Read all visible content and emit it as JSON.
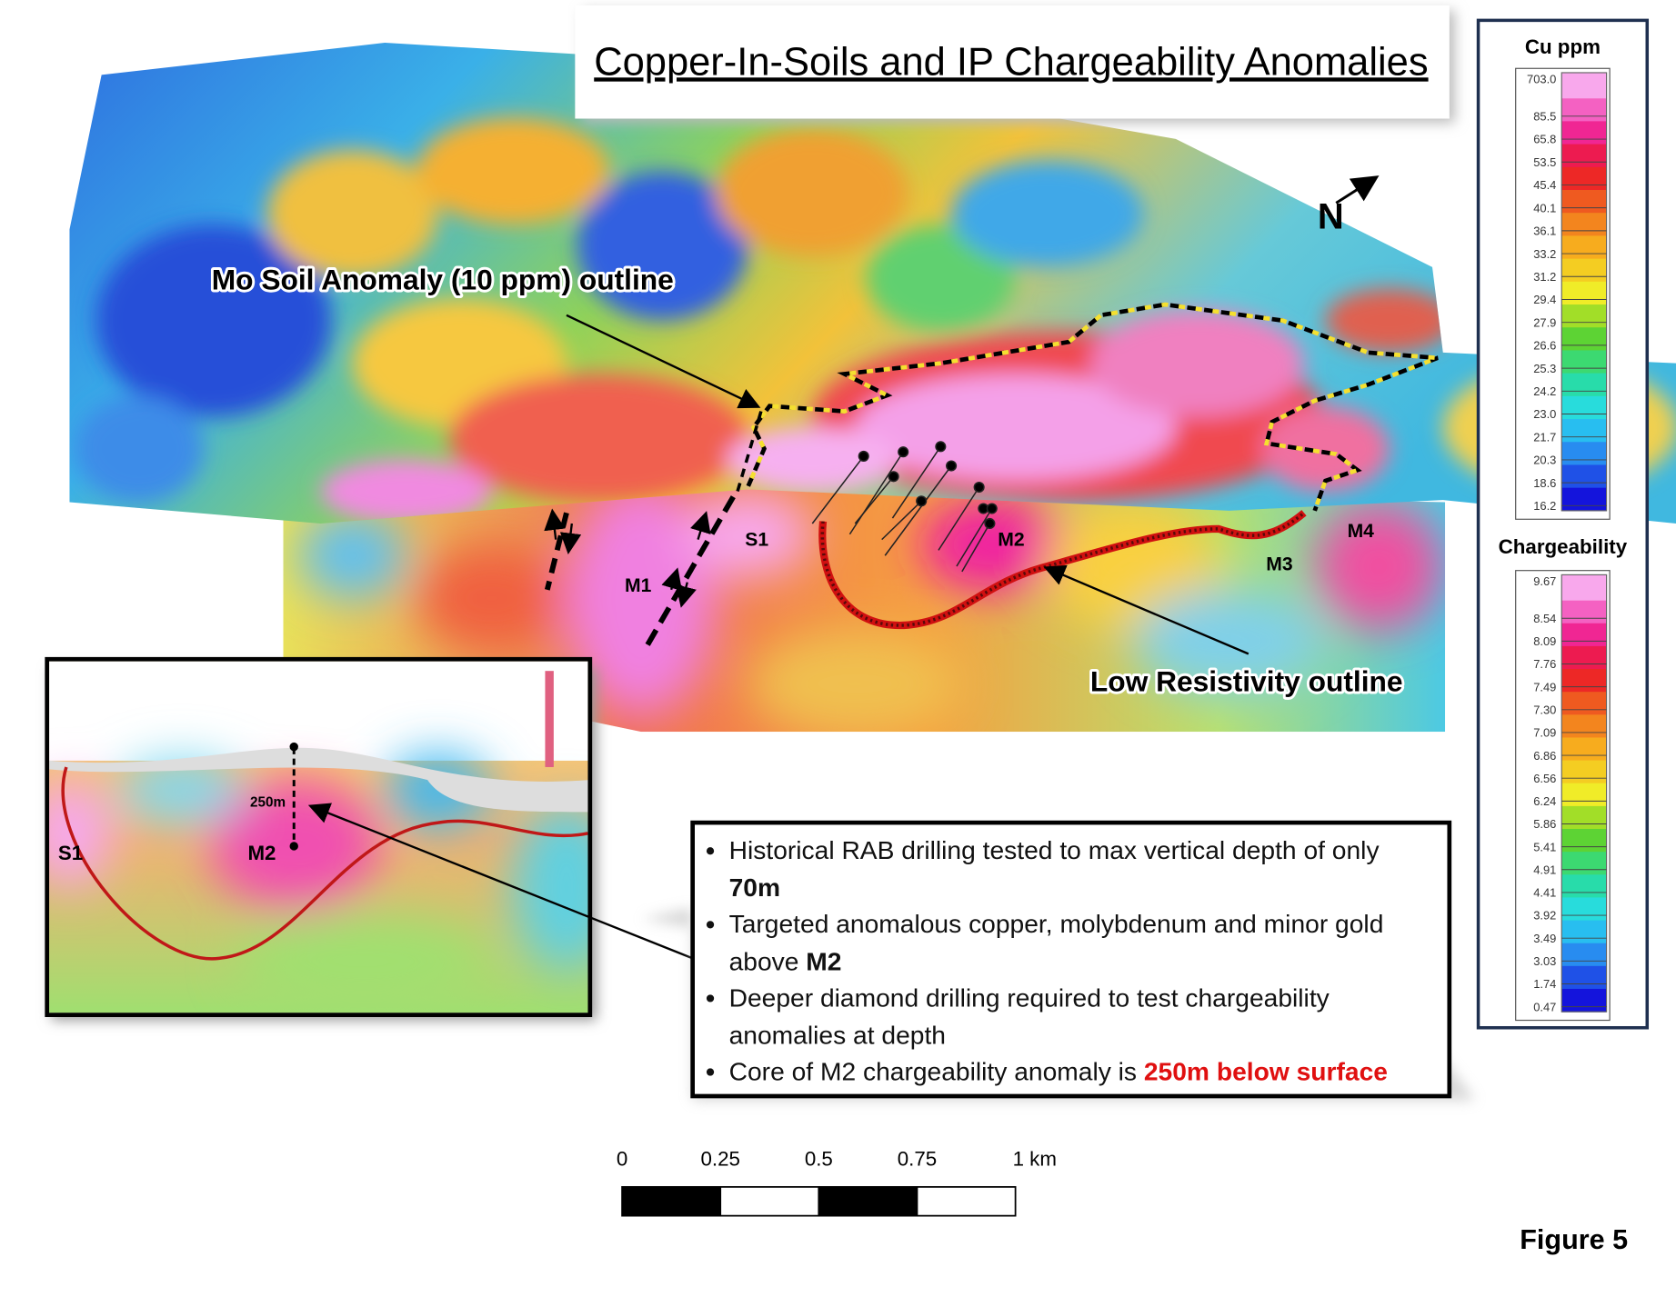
{
  "header": {
    "title": "Copper-In-Soils and IP Chargeability Anomalies"
  },
  "map": {
    "north_label": "N",
    "annotations": {
      "mo_outline": "Mo Soil Anomaly (10 ppm) outline",
      "low_resistivity": "Low Resistivity outline"
    },
    "anomaly_labels": [
      "S1",
      "M1",
      "M2",
      "M3",
      "M4"
    ]
  },
  "inset": {
    "labels": [
      "S1",
      "M2"
    ],
    "depth_label": "250m"
  },
  "legends": [
    {
      "title": "Cu ppm",
      "values": [
        "703.0",
        "85.5",
        "65.8",
        "53.5",
        "45.4",
        "40.1",
        "36.1",
        "33.2",
        "31.2",
        "29.4",
        "27.9",
        "26.6",
        "25.3",
        "24.2",
        "23.0",
        "21.7",
        "20.3",
        "18.6",
        "16.2"
      ]
    },
    {
      "title": "Chargeability",
      "values": [
        "9.67",
        "8.54",
        "8.09",
        "7.76",
        "7.49",
        "7.30",
        "7.09",
        "6.86",
        "6.56",
        "6.24",
        "5.86",
        "5.41",
        "4.91",
        "4.41",
        "3.92",
        "3.49",
        "3.03",
        "1.74",
        "0.47"
      ]
    }
  ],
  "bullets": [
    {
      "parts": [
        {
          "text": "Historical RAB drilling tested to max vertical depth of only ",
          "style": "normal"
        },
        {
          "text": "70m",
          "style": "bold"
        }
      ]
    },
    {
      "parts": [
        {
          "text": "Targeted anomalous copper, molybdenum and minor gold above ",
          "style": "normal"
        },
        {
          "text": "M2",
          "style": "bold"
        }
      ]
    },
    {
      "parts": [
        {
          "text": "Deeper diamond drilling required to test chargeability anomalies at depth",
          "style": "normal"
        }
      ]
    },
    {
      "parts": [
        {
          "text": "Core of M2 chargeability anomaly is ",
          "style": "normal"
        },
        {
          "text": "250m below surface",
          "style": "red-bold"
        }
      ]
    }
  ],
  "scale_bar": {
    "labels": [
      "0",
      "0.25",
      "0.5",
      "0.75",
      "1 km"
    ]
  },
  "figure_label": "Figure 5"
}
